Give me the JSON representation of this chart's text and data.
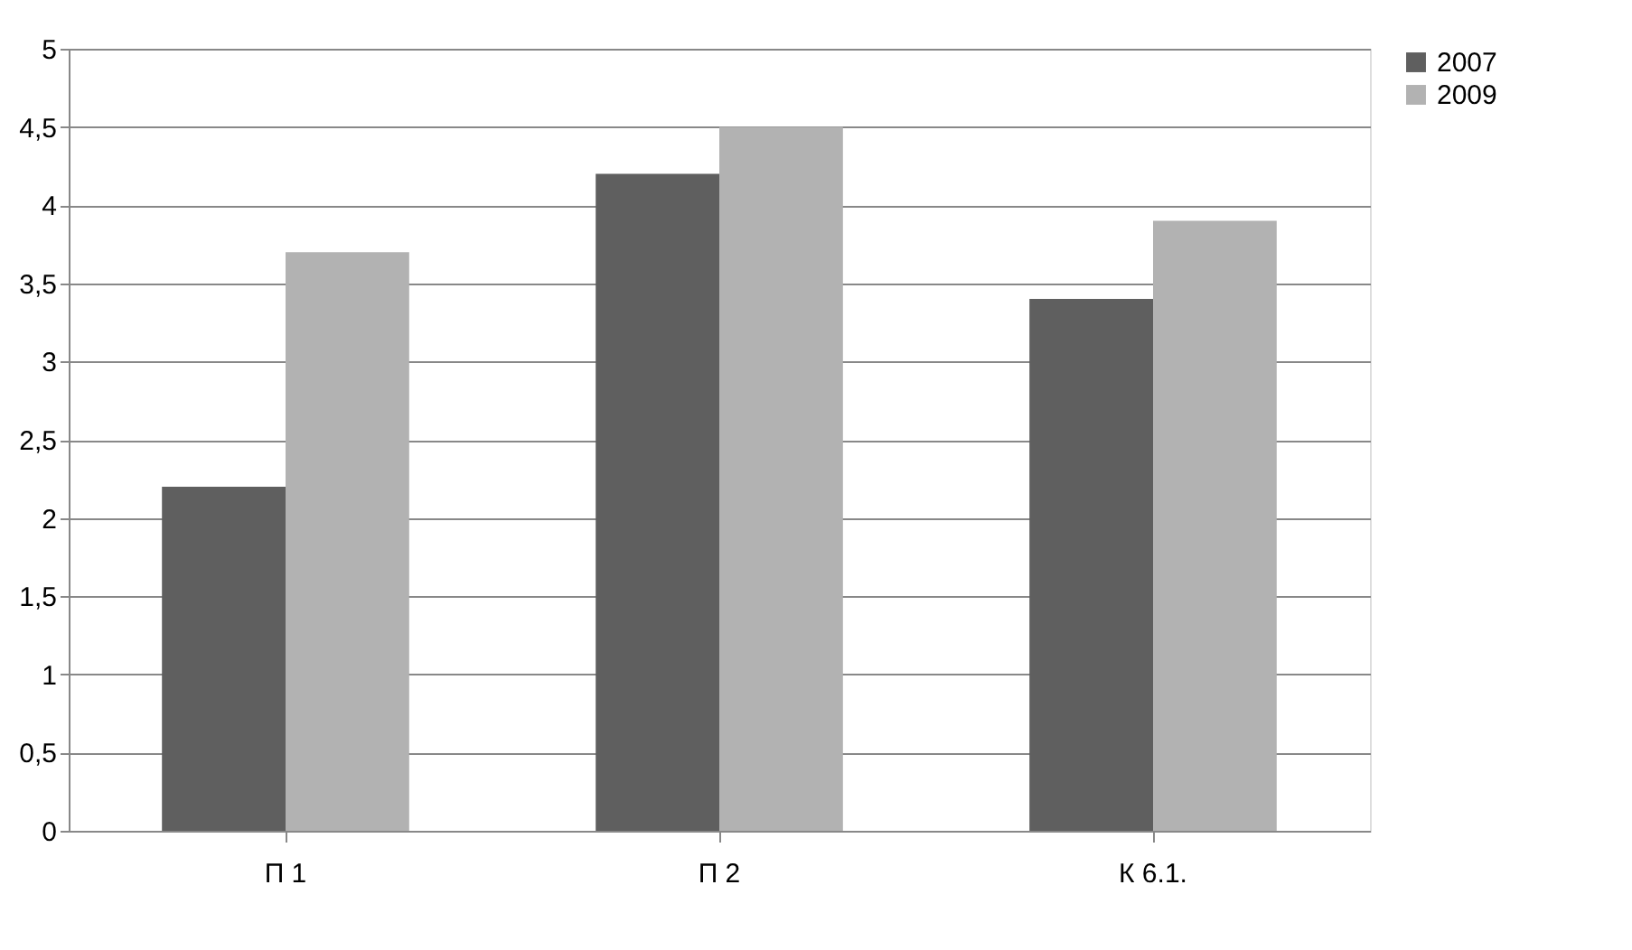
{
  "chart_data": {
    "type": "bar",
    "categories": [
      "П 1",
      "П 2",
      "К 6.1."
    ],
    "series": [
      {
        "name": "2007",
        "color": "#5f5f5f",
        "values": [
          2.2,
          4.2,
          3.4
        ]
      },
      {
        "name": "2009",
        "color": "#b2b2b2",
        "values": [
          3.7,
          4.5,
          3.9
        ]
      }
    ],
    "ylim": [
      0,
      5
    ],
    "yticks": [
      0,
      {
        "value": 0.5,
        "label": "0,5"
      },
      1,
      {
        "value": 1.5,
        "label": "1,5"
      },
      2,
      {
        "value": 2.5,
        "label": "2,5"
      },
      3,
      {
        "value": 3.5,
        "label": "3,5"
      },
      4,
      {
        "value": 4.5,
        "label": "4,5"
      },
      5
    ],
    "grid": "y",
    "legend": "right"
  }
}
